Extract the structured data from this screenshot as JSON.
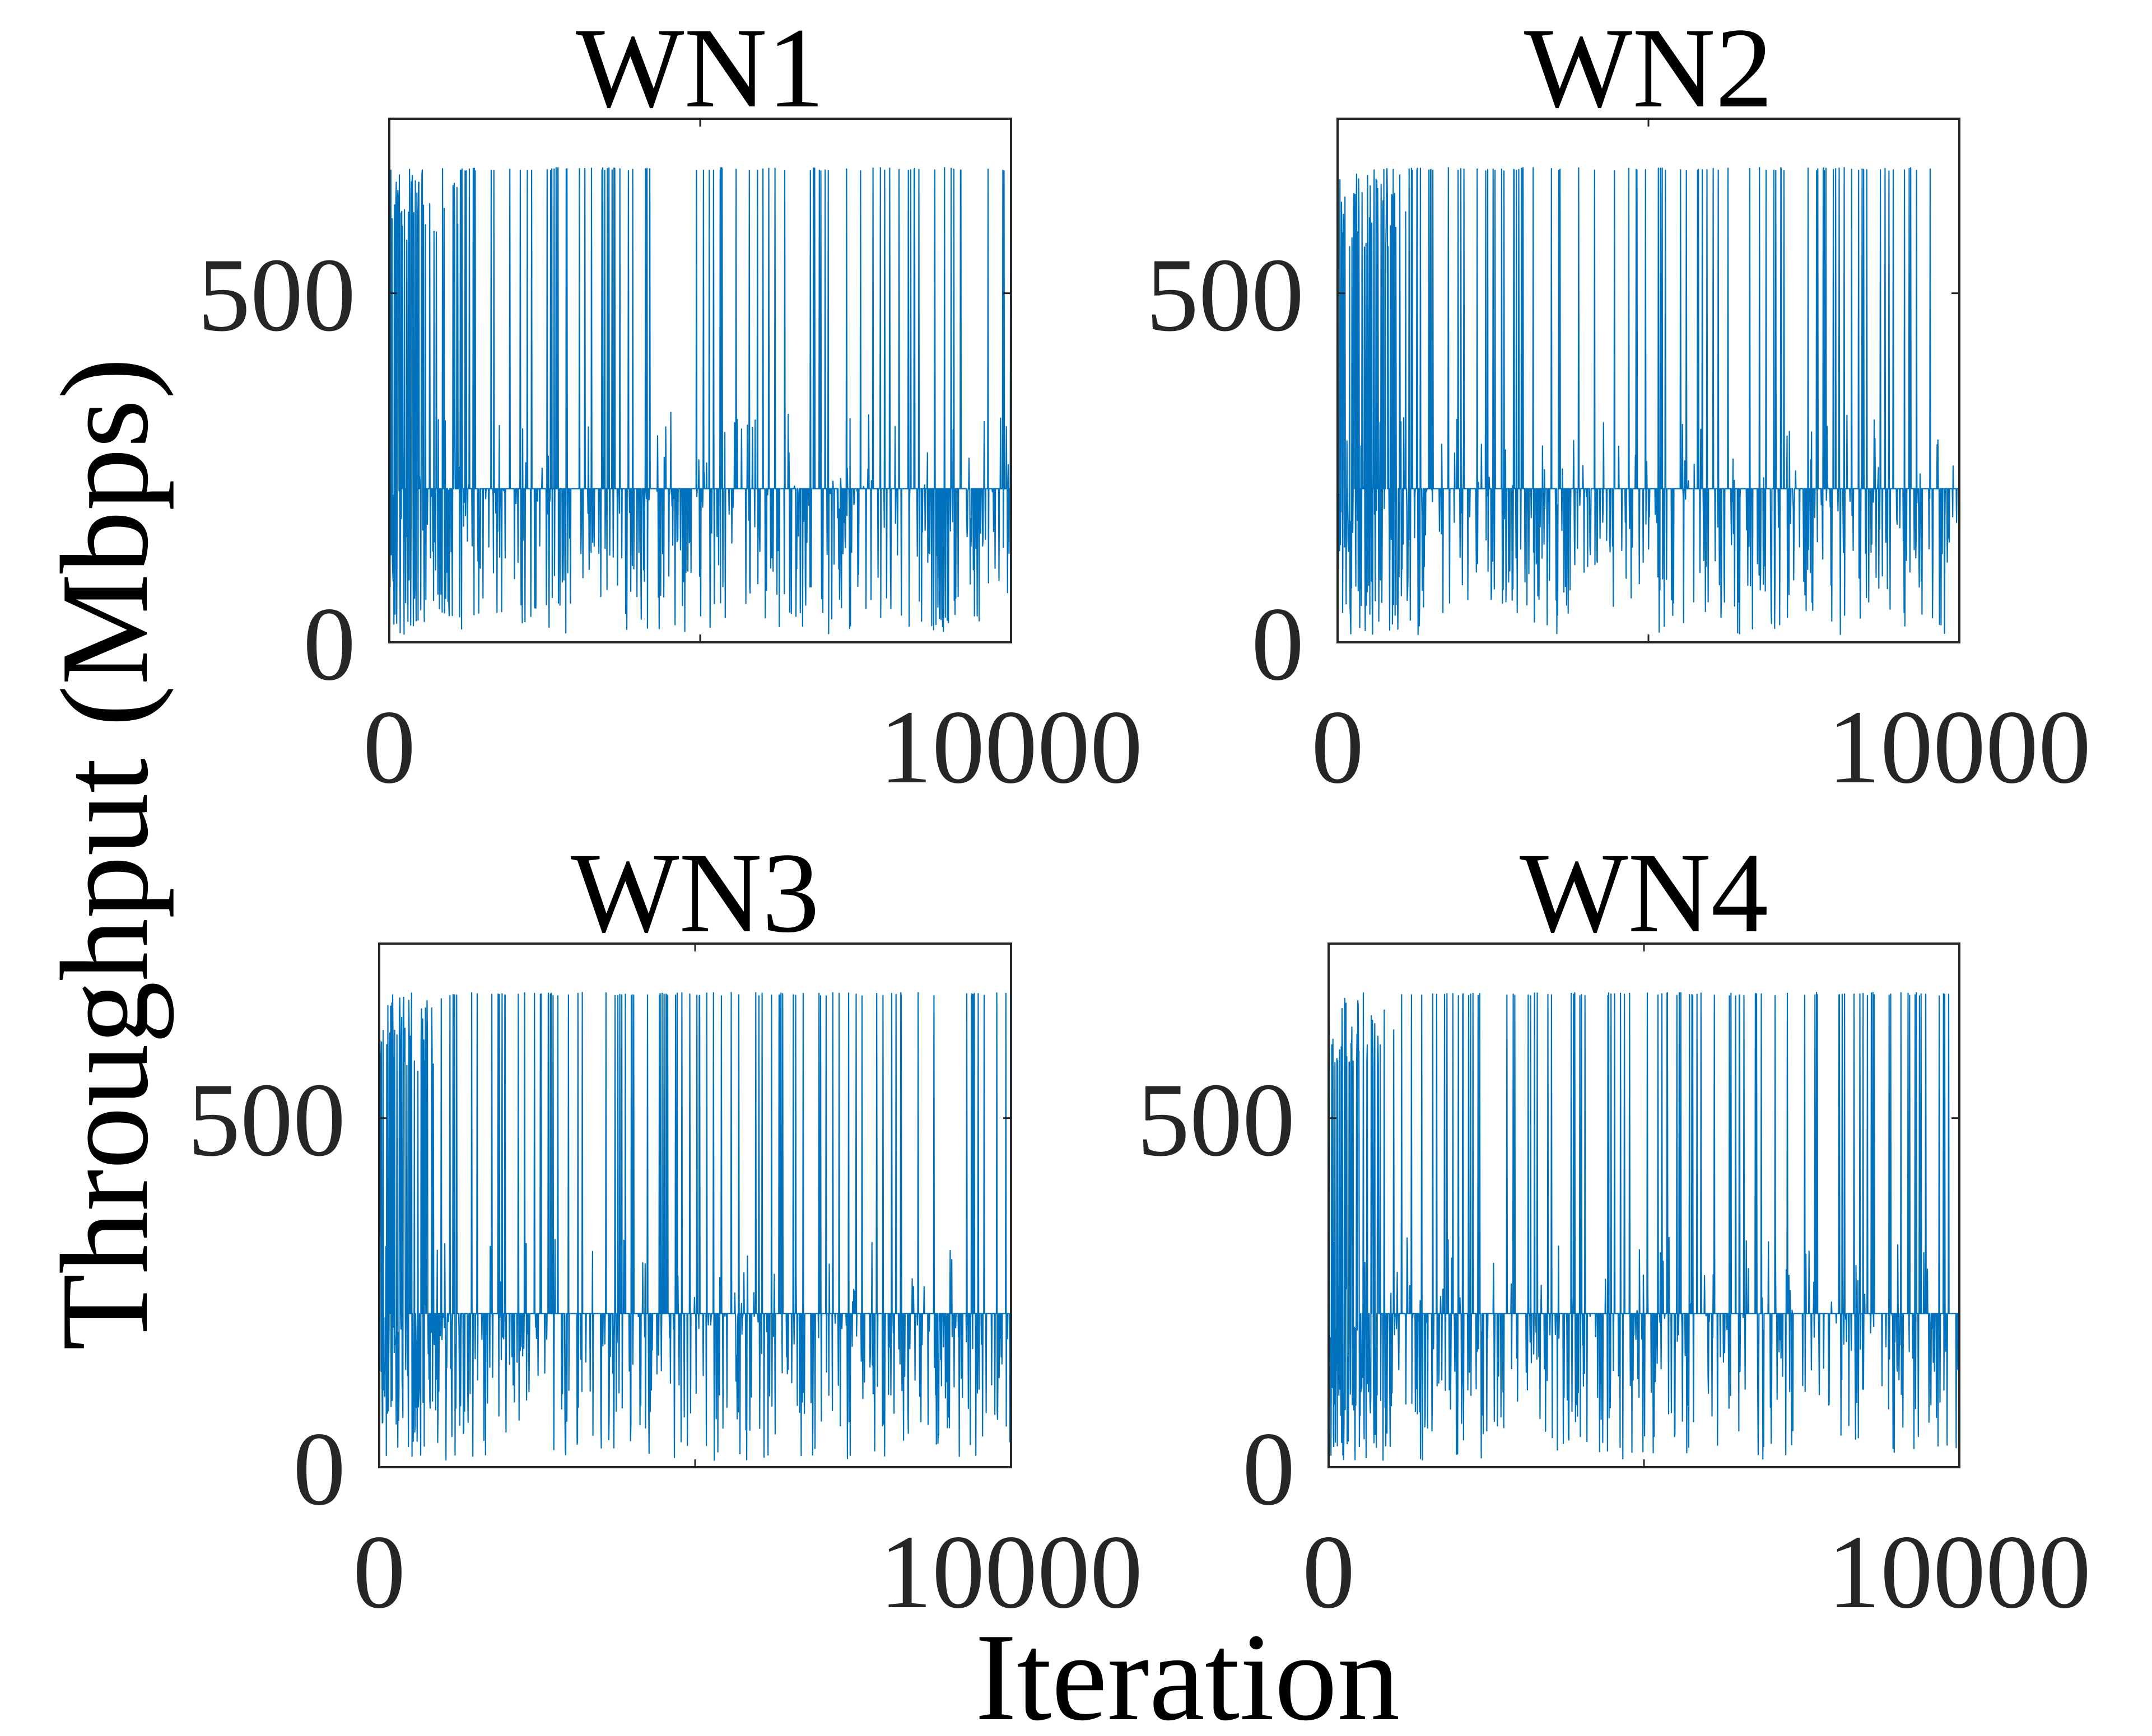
{
  "figure": {
    "ylabel": "Throughput (Mbps)",
    "xlabel": "Iteration"
  },
  "chart_data": [
    {
      "type": "line",
      "title": "WN1",
      "xlabel": "Iteration",
      "ylabel": "Throughput (Mbps)",
      "xlim": [
        0,
        10000
      ],
      "ylim": [
        0,
        750
      ],
      "xticks": [
        0,
        10000
      ],
      "yticks": [
        0,
        500
      ],
      "color": "#0072BD",
      "grid": false,
      "base": 220,
      "peak": 680,
      "y_range_observed": [
        10,
        680
      ],
      "note": "dense spiky trace; settles near 220 with frequent spikes to ~680 and dips to ~10"
    },
    {
      "type": "line",
      "title": "WN2",
      "xlabel": "Iteration",
      "ylabel": "Throughput (Mbps)",
      "xlim": [
        0,
        10000
      ],
      "ylim": [
        0,
        750
      ],
      "xticks": [
        0,
        10000
      ],
      "yticks": [
        0,
        500
      ],
      "color": "#0072BD",
      "grid": false,
      "base": 220,
      "peak": 680,
      "y_range_observed": [
        10,
        680
      ]
    },
    {
      "type": "line",
      "title": "WN3",
      "xlabel": "Iteration",
      "ylabel": "Throughput (Mbps)",
      "xlim": [
        0,
        10000
      ],
      "ylim": [
        0,
        750
      ],
      "xticks": [
        0,
        10000
      ],
      "yticks": [
        0,
        500
      ],
      "color": "#0072BD",
      "grid": false,
      "base": 220,
      "peak": 680,
      "y_range_observed": [
        10,
        680
      ]
    },
    {
      "type": "line",
      "title": "WN4",
      "xlabel": "Iteration",
      "ylabel": "Throughput (Mbps)",
      "xlim": [
        0,
        10000
      ],
      "ylim": [
        0,
        750
      ],
      "xticks": [
        0,
        10000
      ],
      "yticks": [
        0,
        500
      ],
      "color": "#0072BD",
      "grid": false,
      "base": 220,
      "peak": 680,
      "y_range_observed": [
        10,
        680
      ]
    }
  ]
}
